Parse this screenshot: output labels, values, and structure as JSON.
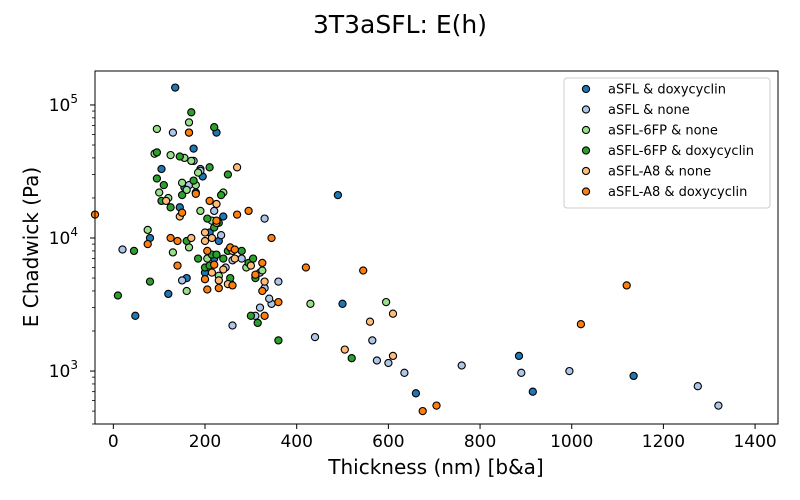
{
  "chart_data": {
    "type": "scatter",
    "title": "3T3aSFL: E(h)",
    "xlabel": "Thickness (nm) [b&a]",
    "ylabel": "E Chadwick (Pa)",
    "xlim": [
      -40,
      1450
    ],
    "ylim": [
      400,
      180000
    ],
    "yscale": "log",
    "x_ticks": [
      0,
      200,
      400,
      600,
      800,
      1000,
      1200,
      1400
    ],
    "y_ticks": [
      1000,
      10000,
      100000
    ],
    "y_tick_labels": [
      {
        "base": "10",
        "exp": "3"
      },
      {
        "base": "10",
        "exp": "4"
      },
      {
        "base": "10",
        "exp": "5"
      }
    ],
    "grid": false,
    "legend_position": "upper-right",
    "series": [
      {
        "name": "aSFL & doxycyclin",
        "color": "#1f77b4",
        "points": [
          [
            135,
            135000
          ],
          [
            225,
            62000
          ],
          [
            175,
            47000
          ],
          [
            105,
            33000
          ],
          [
            195,
            29000
          ],
          [
            155,
            24000
          ],
          [
            145,
            17000
          ],
          [
            210,
            11000
          ],
          [
            240,
            14500
          ],
          [
            220,
            7000
          ],
          [
            230,
            9500
          ],
          [
            160,
            5000
          ],
          [
            120,
            3800
          ],
          [
            48,
            2600
          ],
          [
            80,
            10000
          ],
          [
            200,
            5500
          ],
          [
            490,
            21000
          ],
          [
            500,
            3200
          ],
          [
            885,
            1300
          ],
          [
            915,
            700
          ],
          [
            1135,
            920
          ],
          [
            660,
            680
          ]
        ]
      },
      {
        "name": "aSFL & none",
        "color": "#aec7e8",
        "points": [
          [
            20,
            8200
          ],
          [
            130,
            62000
          ],
          [
            175,
            38000
          ],
          [
            190,
            33000
          ],
          [
            165,
            25000
          ],
          [
            220,
            16000
          ],
          [
            235,
            10500
          ],
          [
            245,
            6000
          ],
          [
            260,
            6800
          ],
          [
            280,
            7000
          ],
          [
            310,
            5200
          ],
          [
            320,
            5500
          ],
          [
            330,
            14000
          ],
          [
            345,
            3200
          ],
          [
            360,
            4700
          ],
          [
            150,
            4800
          ],
          [
            320,
            3000
          ],
          [
            340,
            3500
          ],
          [
            440,
            1800
          ],
          [
            565,
            1700
          ],
          [
            575,
            1200
          ],
          [
            600,
            1150
          ],
          [
            635,
            970
          ],
          [
            760,
            1100
          ],
          [
            890,
            970
          ],
          [
            995,
            1000
          ],
          [
            1275,
            770
          ],
          [
            1320,
            550
          ],
          [
            260,
            2200
          ],
          [
            310,
            2600
          ],
          [
            190,
            32000
          ],
          [
            330,
            4200
          ]
        ]
      },
      {
        "name": "aSFL-6FP & none",
        "color": "#98df8a",
        "points": [
          [
            95,
            66000
          ],
          [
            165,
            74000
          ],
          [
            90,
            43000
          ],
          [
            125,
            42000
          ],
          [
            155,
            40000
          ],
          [
            170,
            38000
          ],
          [
            185,
            31000
          ],
          [
            100,
            22000
          ],
          [
            120,
            20000
          ],
          [
            160,
            23000
          ],
          [
            190,
            16000
          ],
          [
            215,
            13500
          ],
          [
            75,
            11500
          ],
          [
            130,
            7800
          ],
          [
            165,
            8500
          ],
          [
            205,
            7000
          ],
          [
            230,
            5200
          ],
          [
            290,
            6000
          ],
          [
            325,
            5700
          ],
          [
            255,
            4600
          ],
          [
            160,
            4000
          ],
          [
            430,
            3200
          ],
          [
            595,
            3300
          ],
          [
            165,
            62000
          ],
          [
            150,
            26000
          ],
          [
            240,
            22000
          ],
          [
            180,
            25000
          ]
        ]
      },
      {
        "name": "aSFL-6FP & doxycyclin",
        "color": "#2ca02c",
        "points": [
          [
            170,
            88000
          ],
          [
            220,
            68000
          ],
          [
            95,
            44000
          ],
          [
            145,
            41000
          ],
          [
            210,
            34000
          ],
          [
            250,
            30000
          ],
          [
            175,
            27000
          ],
          [
            95,
            28000
          ],
          [
            235,
            21000
          ],
          [
            105,
            19000
          ],
          [
            150,
            21000
          ],
          [
            125,
            17000
          ],
          [
            205,
            14000
          ],
          [
            220,
            12000
          ],
          [
            230,
            13000
          ],
          [
            250,
            8000
          ],
          [
            280,
            8000
          ],
          [
            45,
            8000
          ],
          [
            160,
            9500
          ],
          [
            185,
            7000
          ],
          [
            215,
            7500
          ],
          [
            225,
            7500
          ],
          [
            240,
            7000
          ],
          [
            295,
            6500
          ],
          [
            305,
            7000
          ],
          [
            310,
            5000
          ],
          [
            200,
            6000
          ],
          [
            255,
            5000
          ],
          [
            10,
            3700
          ],
          [
            80,
            4700
          ],
          [
            300,
            2600
          ],
          [
            315,
            2300
          ],
          [
            360,
            1700
          ],
          [
            520,
            1250
          ],
          [
            110,
            25000
          ],
          [
            210,
            6200
          ]
        ]
      },
      {
        "name": "aSFL-A8 & none",
        "color": "#ffbb78",
        "points": [
          [
            270,
            34000
          ],
          [
            180,
            22000
          ],
          [
            115,
            19000
          ],
          [
            225,
            18000
          ],
          [
            145,
            14500
          ],
          [
            225,
            13000
          ],
          [
            200,
            11000
          ],
          [
            170,
            10000
          ],
          [
            200,
            9500
          ],
          [
            215,
            10000
          ],
          [
            265,
            7000
          ],
          [
            215,
            5500
          ],
          [
            240,
            5800
          ],
          [
            250,
            4500
          ],
          [
            330,
            4700
          ],
          [
            560,
            2350
          ],
          [
            610,
            2700
          ],
          [
            505,
            1450
          ],
          [
            610,
            1300
          ],
          [
            260,
            8000
          ],
          [
            300,
            6200
          ],
          [
            230,
            4800
          ]
        ]
      },
      {
        "name": "aSFL-A8 & doxycyclin",
        "color": "#ff7f0e",
        "points": [
          [
            -40,
            15000
          ],
          [
            165,
            62000
          ],
          [
            180,
            21500
          ],
          [
            210,
            19000
          ],
          [
            270,
            15000
          ],
          [
            295,
            16000
          ],
          [
            150,
            15500
          ],
          [
            225,
            13500
          ],
          [
            125,
            10000
          ],
          [
            75,
            9000
          ],
          [
            140,
            9500
          ],
          [
            255,
            8500
          ],
          [
            205,
            8000
          ],
          [
            265,
            8200
          ],
          [
            325,
            6500
          ],
          [
            310,
            5300
          ],
          [
            220,
            6300
          ],
          [
            200,
            4900
          ],
          [
            205,
            4100
          ],
          [
            230,
            4200
          ],
          [
            260,
            4400
          ],
          [
            325,
            4000
          ],
          [
            360,
            3300
          ],
          [
            330,
            2600
          ],
          [
            140,
            6200
          ],
          [
            345,
            10000
          ],
          [
            420,
            6000
          ],
          [
            545,
            5700
          ],
          [
            1020,
            2250
          ],
          [
            1120,
            4400
          ],
          [
            705,
            550
          ],
          [
            675,
            500
          ]
        ]
      }
    ]
  }
}
